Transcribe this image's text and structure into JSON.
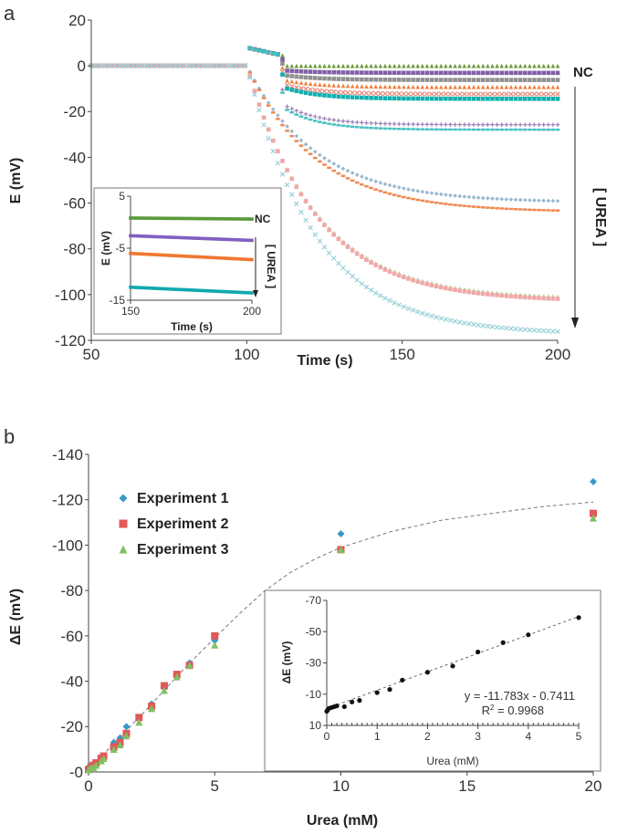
{
  "chart_data": [
    {
      "type": "scatter",
      "panel_label": "a",
      "xlabel": "Time (s)",
      "ylabel": "E (mV)",
      "xlim": [
        50,
        200
      ],
      "ylim": [
        -120,
        20
      ],
      "xticks": [
        "50",
        "100",
        "150",
        "200"
      ],
      "yticks": [
        "20",
        "0",
        "-20",
        "-40",
        "-60",
        "-80",
        "-100",
        "-120"
      ],
      "annotations": {
        "nc": "NC",
        "urea": "[ UREA ]"
      },
      "series": [
        {
          "color": "#6a9a3a",
          "marker": "tri",
          "final": 0
        },
        {
          "color": "#8060a8",
          "marker": "sq",
          "final": -3
        },
        {
          "color": "#909090",
          "marker": "sq",
          "final": -6
        },
        {
          "color": "#f08040",
          "marker": "tri",
          "final": -9
        },
        {
          "color": "#e88878",
          "marker": "x",
          "final": -12
        },
        {
          "color": "#10b0b0",
          "marker": "sq",
          "final": -14
        },
        {
          "color": "#9a80b8",
          "marker": "plus",
          "final": -25
        },
        {
          "color": "#48c0c0",
          "marker": "dash",
          "final": -27
        },
        {
          "color": "#98b8cc",
          "marker": "dia",
          "final": -58
        },
        {
          "color": "#f08850",
          "marker": "dash",
          "final": -62
        },
        {
          "color": "#b0d898",
          "marker": "tri",
          "final": -99
        },
        {
          "color": "#f0a8a8",
          "marker": "sq",
          "final": -100
        },
        {
          "color": "#98d0d8",
          "marker": "x",
          "final": -114
        }
      ],
      "inset": {
        "xlabel": "Time (s)",
        "ylabel": "E (mV)",
        "xlim": [
          150,
          200
        ],
        "ylim": [
          -15,
          5
        ],
        "xticks": [
          "150",
          "200"
        ],
        "yticks": [
          "5",
          "-5",
          "-15"
        ],
        "annotations": {
          "nc": "NC",
          "urea": "[ UREA ]"
        },
        "series": [
          {
            "color": "#5a9a3a",
            "start": 0.8,
            "end": 0.6
          },
          {
            "color": "#8060c0",
            "start": -2.6,
            "end": -3.5
          },
          {
            "color": "#f07830",
            "start": -6,
            "end": -7.2
          },
          {
            "color": "#10a8b0",
            "start": -12.5,
            "end": -13.6
          }
        ]
      }
    },
    {
      "type": "scatter",
      "panel_label": "b",
      "xlabel": "Urea (mM)",
      "ylabel": "ΔE (mV)",
      "xlim": [
        0,
        20
      ],
      "ylim": [
        0,
        -140
      ],
      "xticks": [
        "0",
        "5",
        "10",
        "15",
        "20"
      ],
      "yticks": [
        "-140",
        "-120",
        "-100",
        "-80",
        "-60",
        "-40",
        "-20",
        "-0"
      ],
      "legend_position": "top-left",
      "series": [
        {
          "name": "Experiment 1",
          "color": "#3a98c8",
          "marker": "dia",
          "x": [
            0,
            0.1,
            0.2,
            0.3,
            0.5,
            0.6,
            1,
            1.25,
            1.5,
            2,
            2.5,
            3,
            3.5,
            4,
            5,
            10,
            20
          ],
          "y": [
            -2,
            -3,
            -3,
            -4,
            -6,
            -7,
            -13,
            -15,
            -20,
            -24,
            -30,
            -37,
            -42,
            -48,
            -58,
            -105,
            -128
          ]
        },
        {
          "name": "Experiment 2",
          "color": "#e05858",
          "marker": "sq",
          "x": [
            0,
            0.1,
            0.2,
            0.3,
            0.5,
            0.6,
            1,
            1.25,
            1.5,
            2,
            2.5,
            3,
            3.5,
            4,
            5,
            10,
            20
          ],
          "y": [
            -1,
            -2,
            -3,
            -4,
            -6,
            -7,
            -11,
            -13,
            -17,
            -24,
            -29,
            -38,
            -43,
            -47,
            -60,
            -98,
            -114
          ]
        },
        {
          "name": "Experiment 3",
          "color": "#80c060",
          "marker": "tri",
          "x": [
            0,
            0.1,
            0.2,
            0.3,
            0.5,
            0.6,
            1,
            1.25,
            1.5,
            2,
            2.5,
            3,
            3.5,
            4,
            5,
            10,
            20
          ],
          "y": [
            -1,
            -2,
            -2,
            -3,
            -5,
            -6,
            -10,
            -12,
            -16,
            -22,
            -28,
            -36,
            -42,
            -47,
            -56,
            -98,
            -112
          ]
        }
      ],
      "fit": {
        "style": "dashed",
        "x": [
          0,
          2,
          4,
          5,
          6,
          7,
          8,
          9,
          10,
          12,
          14,
          16,
          18,
          20
        ],
        "y": [
          -1,
          -24,
          -48,
          -59,
          -70,
          -80,
          -88,
          -94,
          -99,
          -106,
          -111,
          -114,
          -117,
          -119
        ]
      },
      "inset": {
        "xlabel": "Urea (mM)",
        "ylabel": "ΔE (mV)",
        "xlim": [
          0,
          5
        ],
        "ylim": [
          10,
          -70
        ],
        "xticks": [
          "0",
          "1",
          "2",
          "3",
          "4",
          "5"
        ],
        "yticks": [
          "-70",
          "-50",
          "-30",
          "-10",
          "10"
        ],
        "x": [
          0,
          0.02,
          0.05,
          0.1,
          0.15,
          0.2,
          0.35,
          0.5,
          0.65,
          1,
          1.25,
          1.5,
          2,
          2.5,
          3,
          3.5,
          4,
          5
        ],
        "y": [
          1,
          0,
          -1,
          -1.5,
          -2,
          -2.5,
          -2,
          -5,
          -6,
          -11,
          -13,
          -19,
          -24,
          -28,
          -37,
          -43,
          -48,
          -59
        ],
        "equation": "y = -11.783x - 0.7411",
        "r2_label": "R",
        "r2_sup": "2",
        "r2_value": " = 0.9968"
      }
    }
  ]
}
